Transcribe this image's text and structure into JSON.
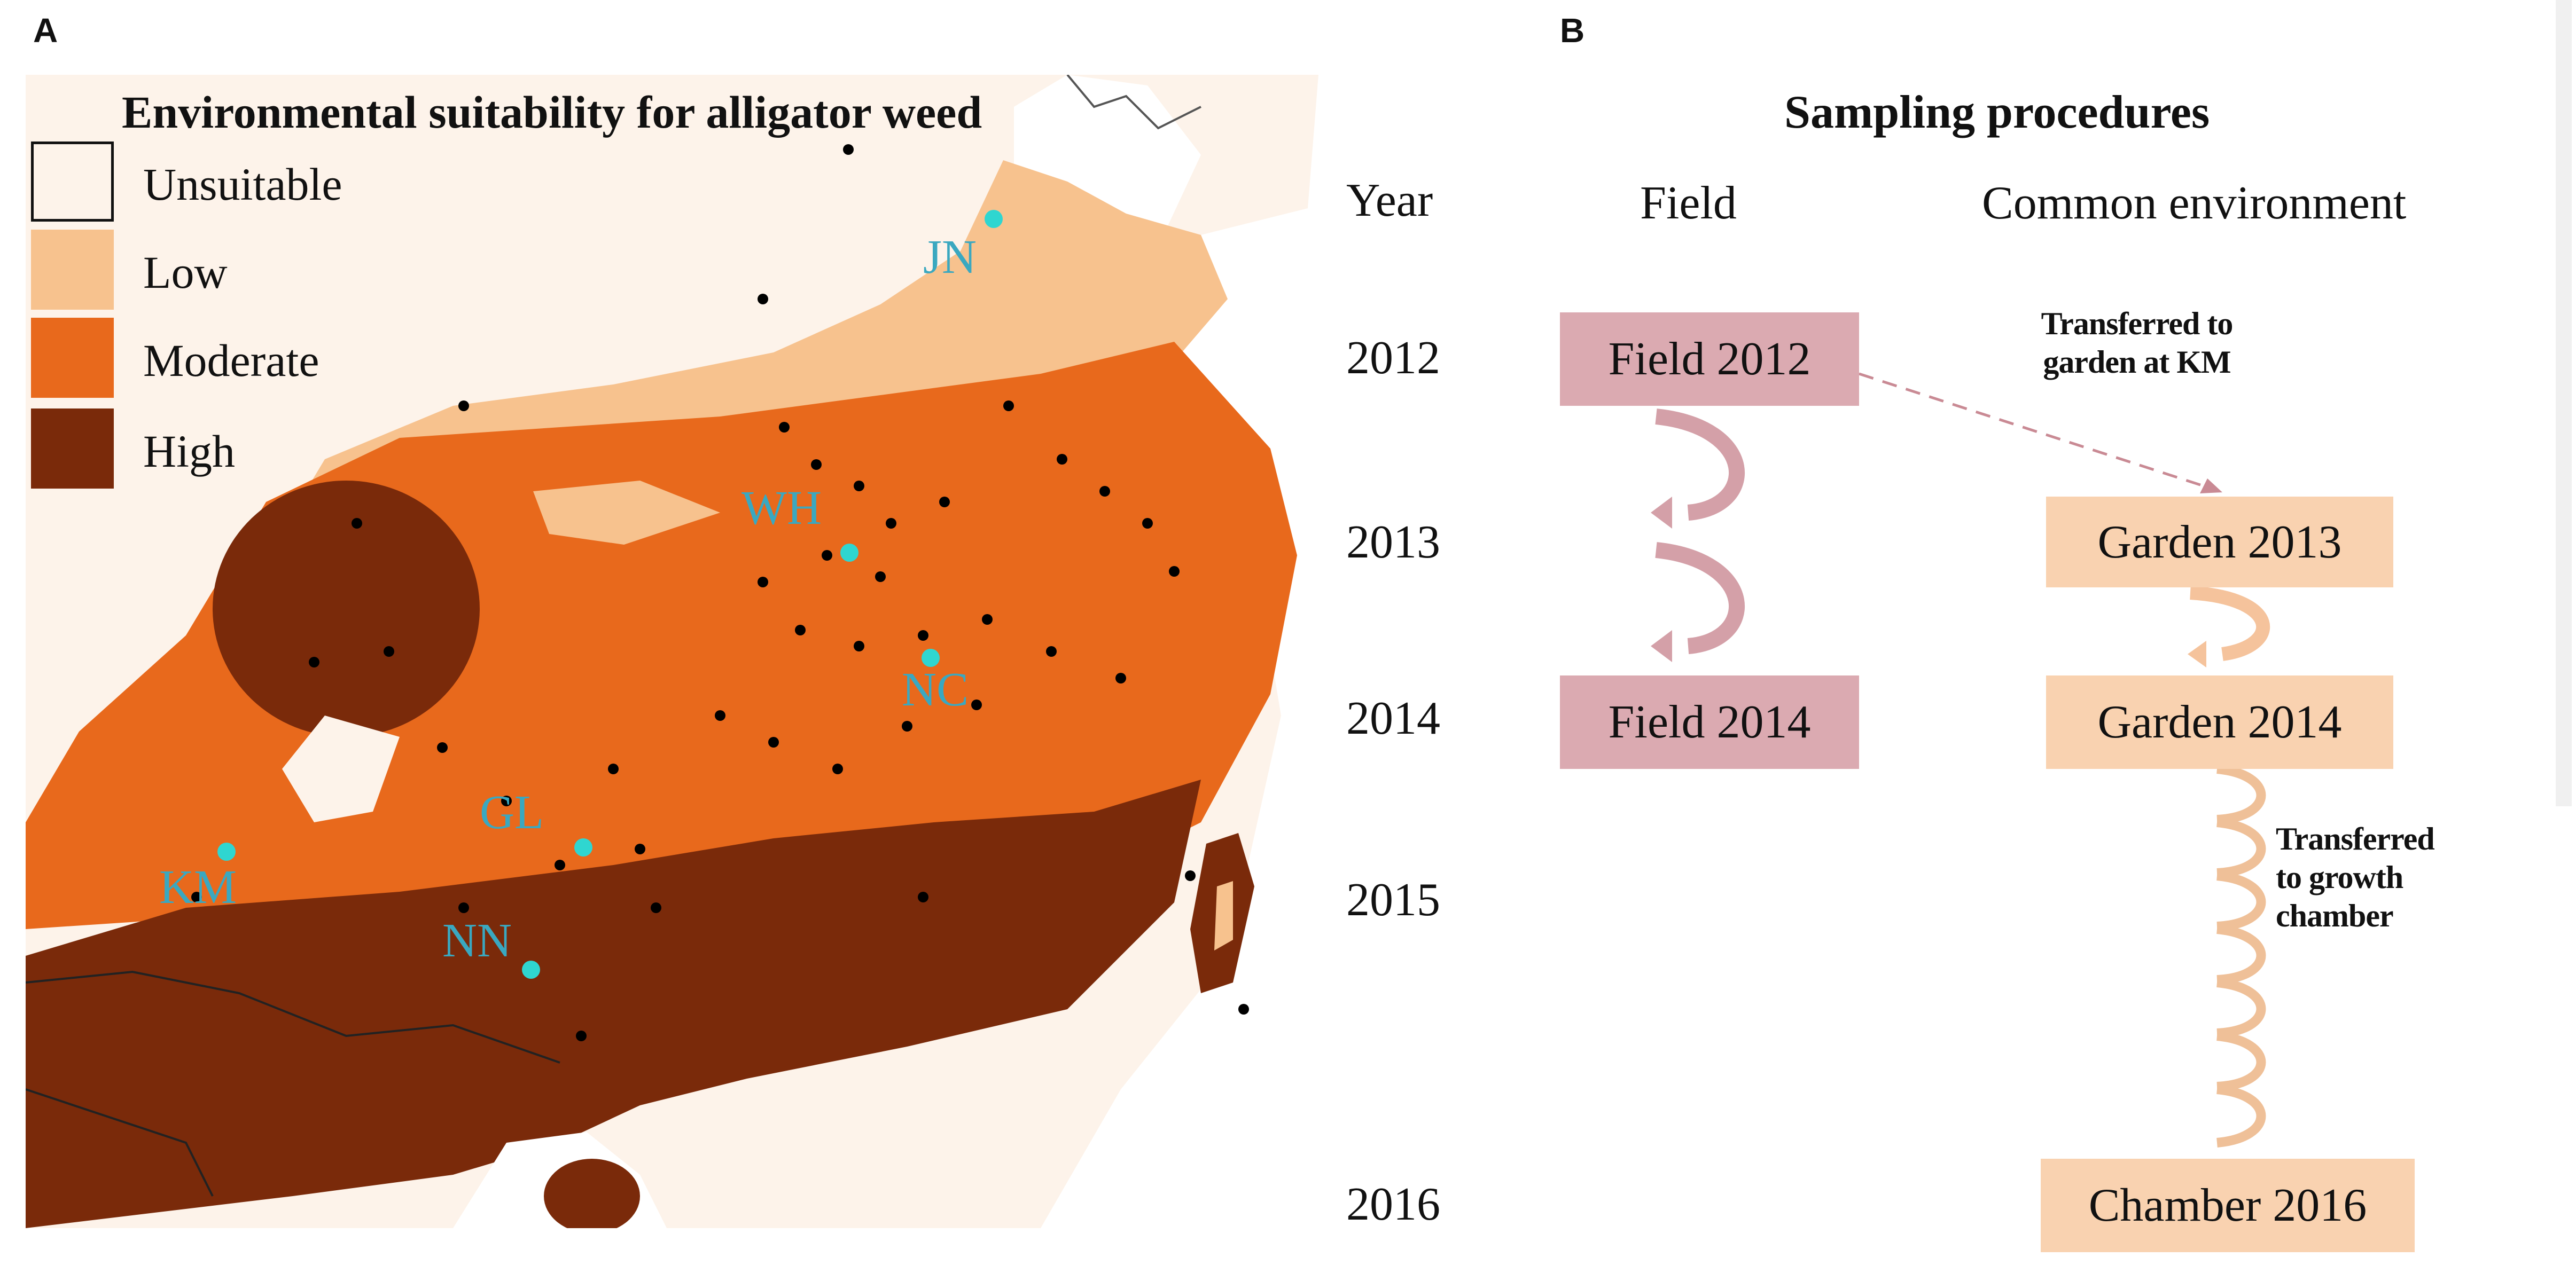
{
  "panel_a": {
    "letter": "A",
    "title": "Environmental suitability for alligator weed",
    "legend": [
      {
        "label": "Unsuitable",
        "color": "#fdf3ea",
        "border": "#111111"
      },
      {
        "label": "Low",
        "color": "#f7c28e"
      },
      {
        "label": "Moderate",
        "color": "#e8691c"
      },
      {
        "label": "High",
        "color": "#7a2a0a"
      }
    ],
    "sites": [
      {
        "code": "JN"
      },
      {
        "code": "WH"
      },
      {
        "code": "NC"
      },
      {
        "code": "GL"
      },
      {
        "code": "KM"
      },
      {
        "code": "NN"
      }
    ],
    "site_color": "#2fd6d0",
    "label_color": "#3aa8c0"
  },
  "years": {
    "header": "Year",
    "list": [
      "2012",
      "2013",
      "2014",
      "2015",
      "2016"
    ]
  },
  "panel_b": {
    "letter": "B",
    "title": "Sampling procedures",
    "col_field": "Field",
    "col_common": "Common environment",
    "boxes": {
      "field_2012": "Field 2012",
      "field_2014": "Field 2014",
      "garden_2013": "Garden 2013",
      "garden_2014": "Garden 2014",
      "chamber_2016": "Chamber 2016"
    },
    "notes": {
      "to_garden_line1": "Transferred to",
      "to_garden_line2": "garden at KM",
      "to_chamber_line1": "Transferred",
      "to_chamber_line2": "to growth",
      "to_chamber_line3": "chamber"
    },
    "colors": {
      "field_box": "#dbaab1",
      "garden_box": "#f9d2b0",
      "dashed_arrow": "#c98a94"
    }
  }
}
